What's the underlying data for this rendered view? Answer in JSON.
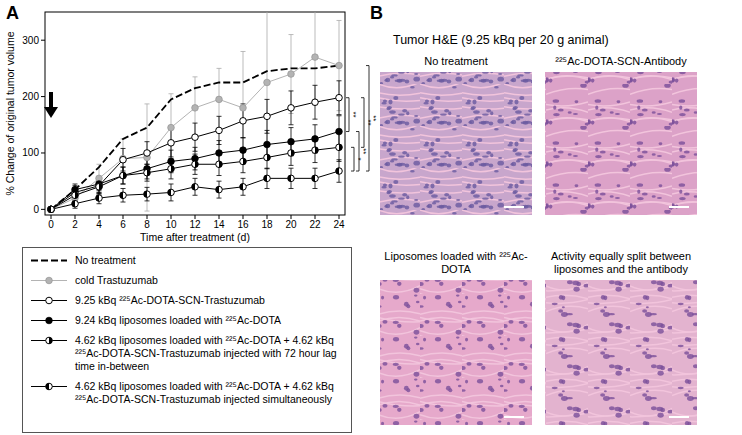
{
  "panel_labels": [
    "A",
    "B"
  ],
  "chart_data": {
    "type": "line",
    "x_label": "Time after treatment (d)",
    "y_label": "% Change of original tumor volume",
    "x": [
      0,
      2,
      4,
      6,
      8,
      10,
      12,
      14,
      16,
      18,
      20,
      22,
      24
    ],
    "xlim": [
      -0.5,
      24.5
    ],
    "xticks": [
      0,
      2,
      4,
      6,
      8,
      10,
      12,
      14,
      16,
      18,
      20,
      22,
      24
    ],
    "ylim": [
      -10,
      350
    ],
    "yticks": [
      0,
      100,
      200,
      300
    ],
    "grid": false,
    "legend": "bottom",
    "series": [
      {
        "name": "No treatment",
        "color": "#000000",
        "line_style": "dashed",
        "marker": "none",
        "values": [
          0,
          35,
          75,
          125,
          145,
          195,
          215,
          225,
          225,
          245,
          250,
          250,
          255
        ]
      },
      {
        "name": "cold Trastuzumab",
        "color": "#b3b3b3",
        "line_style": "solid",
        "marker": "circle",
        "values": [
          0,
          20,
          55,
          90,
          92,
          145,
          180,
          195,
          180,
          225,
          240,
          270,
          255
        ],
        "errors": [
          0,
          15,
          25,
          35,
          95,
          60,
          55,
          55,
          100,
          135,
          70,
          85,
          80
        ]
      },
      {
        "name": "9.25 kBq ²²⁵Ac-DOTA-SCN-Trastuzumab",
        "color": "#000000",
        "line_style": "solid",
        "marker": "circle-open",
        "values": [
          0,
          30,
          42,
          88,
          100,
          118,
          128,
          140,
          157,
          165,
          180,
          190,
          198
        ],
        "errors": [
          0,
          12,
          15,
          20,
          20,
          25,
          25,
          25,
          30,
          30,
          30,
          30,
          30
        ]
      },
      {
        "name": "9.24 kBq liposomes loaded with ²²⁵Ac-DOTA",
        "color": "#000000",
        "line_style": "solid",
        "marker": "circle",
        "values": [
          0,
          35,
          45,
          60,
          72,
          85,
          90,
          100,
          105,
          115,
          120,
          125,
          138
        ],
        "errors": [
          0,
          10,
          12,
          15,
          18,
          20,
          20,
          22,
          22,
          25,
          25,
          25,
          28
        ]
      },
      {
        "name": "4.62 kBq liposomes loaded with ²²⁵Ac-DOTA + 4.62 kBq ²²⁵Ac-DOTA-SCN-Trastuzumab injected with 72 hour lag time in-between",
        "color": "#000000",
        "line_style": "solid",
        "marker": "half-right",
        "values": [
          0,
          25,
          40,
          60,
          65,
          72,
          80,
          80,
          85,
          92,
          100,
          105,
          110
        ],
        "errors": [
          0,
          10,
          12,
          15,
          15,
          18,
          18,
          20,
          20,
          20,
          22,
          22,
          25
        ]
      },
      {
        "name": "4.62 kBq liposomes loaded with ²²⁵Ac-DOTA + 4.62 kBq ²²⁵Ac-DOTA-SCN-Trastuzumab injected simultaneously",
        "color": "#000000",
        "line_style": "solid",
        "marker": "half-left",
        "values": [
          0,
          10,
          20,
          25,
          27,
          30,
          40,
          35,
          40,
          55,
          55,
          55,
          68
        ],
        "errors": [
          0,
          8,
          10,
          12,
          12,
          15,
          15,
          15,
          15,
          18,
          18,
          18,
          20
        ]
      }
    ],
    "annotations": [
      {
        "text": "**",
        "y_from": 198,
        "y_to": 138
      },
      {
        "text": "*",
        "y_from": 110,
        "y_to": 68
      },
      {
        "text": "**",
        "y_from": 138,
        "y_to": 68
      },
      {
        "text": "**",
        "y_from": 198,
        "y_to": 110
      },
      {
        "text": "**",
        "y_from": 255,
        "y_to": 68
      }
    ]
  },
  "histology": {
    "title": "Tumor H&E (9.25 kBq per 20 g animal)",
    "panels": [
      "No treatment",
      "²²⁵Ac-DOTA-SCN-Antibody",
      "Liposomes loaded with ²²⁵Ac-DOTA",
      "Activity equally split between liposomes and the antibody"
    ]
  }
}
